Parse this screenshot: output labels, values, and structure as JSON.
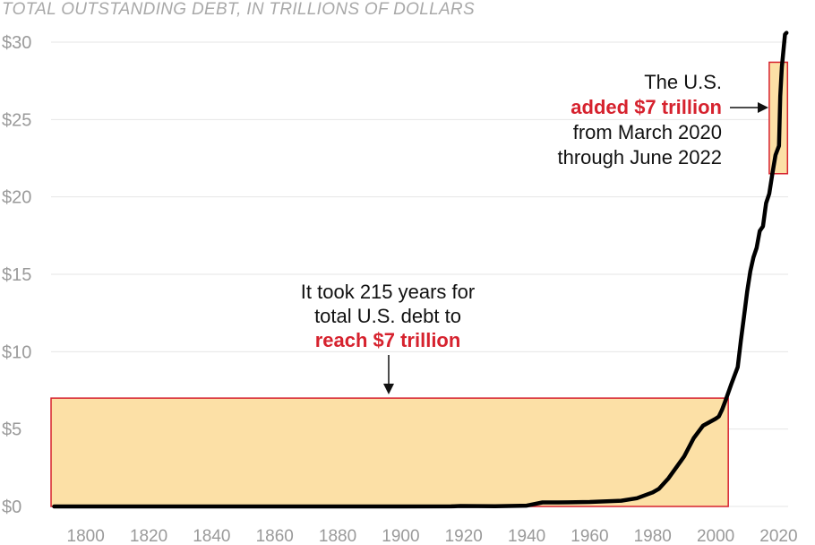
{
  "chart_data": {
    "type": "line",
    "title": "TOTAL OUTSTANDING DEBT, IN TRILLIONS OF DOLLARS",
    "xlabel": "",
    "ylabel": "",
    "xlim": [
      1789,
      2023
    ],
    "ylim": [
      0,
      30
    ],
    "x_ticks": [
      1800,
      1820,
      1840,
      1860,
      1880,
      1900,
      1920,
      1940,
      1960,
      1980,
      2000,
      2020
    ],
    "x_tick_labels": [
      "1800",
      "1820",
      "1840",
      "1860",
      "1880",
      "1900",
      "1920",
      "1940",
      "1960",
      "1980",
      "2000",
      "2020"
    ],
    "y_ticks": [
      0,
      5,
      10,
      15,
      20,
      25,
      30
    ],
    "y_tick_labels": [
      "$0",
      "$5",
      "$10",
      "$15",
      "$20",
      "$25",
      "$30"
    ],
    "grid": true,
    "series": [
      {
        "x": [
          1790,
          1850,
          1900,
          1916,
          1919,
          1930,
          1940,
          1945,
          1950,
          1960,
          1970,
          1975,
          1980,
          1982,
          1985,
          1990,
          1993,
          1996,
          2000,
          2001,
          2002,
          2003,
          2005,
          2007,
          2008,
          2009,
          2010,
          2011,
          2012,
          2013,
          2014,
          2015,
          2016,
          2017,
          2018,
          2019,
          2020.1,
          2020.5,
          2021,
          2022,
          2022.5
        ],
        "values": [
          0.0001,
          0.0001,
          0.002,
          0.004,
          0.027,
          0.016,
          0.051,
          0.26,
          0.26,
          0.29,
          0.37,
          0.53,
          0.91,
          1.14,
          1.82,
          3.23,
          4.41,
          5.22,
          5.67,
          5.81,
          6.23,
          6.78,
          7.93,
          9.0,
          10.7,
          12.3,
          13.9,
          15.2,
          16.1,
          16.7,
          17.8,
          18.1,
          19.6,
          20.2,
          21.5,
          22.7,
          23.3,
          26.5,
          28.4,
          30.5,
          30.6
        ]
      }
    ],
    "highlight_boxes": [
      {
        "x_range": [
          1789,
          2004
        ],
        "y_range": [
          0,
          7
        ]
      },
      {
        "x_range": [
          2017,
          2022.8
        ],
        "y_range": [
          21.5,
          28.7
        ]
      }
    ],
    "annotations": {
      "left": {
        "line1": "It took 215 years for",
        "line2": "total U.S. debt to",
        "highlight": "reach $7 trillion"
      },
      "right": {
        "line1": "The U.S.",
        "highlight": "added $7 trillion",
        "line3": "from March 2020",
        "line4": "through June 2022"
      }
    },
    "colors": {
      "line": "#000000",
      "box_fill": "#fce0a6",
      "box_stroke": "#d6222e",
      "highlight_text": "#d6222e",
      "tick_text": "#9a9a9a",
      "grid": "#e6e6e6"
    }
  }
}
